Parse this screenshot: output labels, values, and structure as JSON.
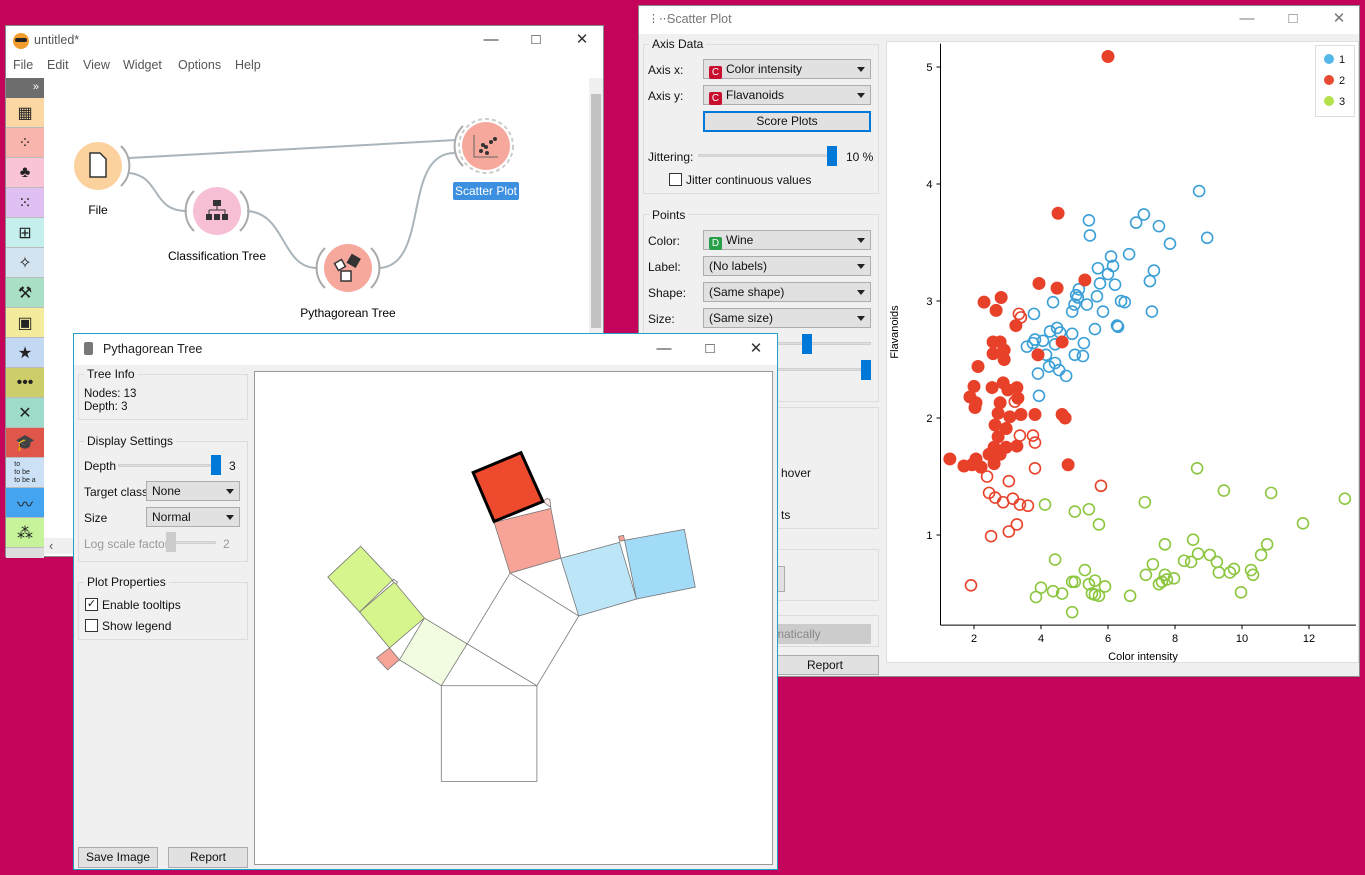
{
  "canvas_window": {
    "title": "untitled*",
    "menu": [
      "File",
      "Edit",
      "View",
      "Widget",
      "Options",
      "Help"
    ],
    "toolbar_collapse": "»",
    "toolbar_categories": [
      {
        "icon": "data-table-icon",
        "color": "#fbd7a3"
      },
      {
        "icon": "scatter-icon",
        "color": "#f8b4ad"
      },
      {
        "icon": "tree-icon",
        "color": "#f9c4d6"
      },
      {
        "icon": "cluster-icon",
        "color": "#e0c0f3"
      },
      {
        "icon": "confusion-matrix-icon",
        "color": "#c5efec"
      },
      {
        "icon": "sparkle-icon",
        "color": "#d3e3ef"
      },
      {
        "icon": "worker-icon",
        "color": "#a8dfc5"
      },
      {
        "icon": "image-icon",
        "color": "#f5eb9c"
      },
      {
        "icon": "star-icon",
        "color": "#c3d8f2"
      },
      {
        "icon": "sequence-icon",
        "color": "#cdcd6a"
      },
      {
        "icon": "network-icon",
        "color": "#9edbca"
      },
      {
        "icon": "graduation-cap-icon",
        "color": "#e1564b"
      },
      {
        "icon": "text-icon",
        "color": "#cce1f6",
        "label": "to\nto be\nto be a"
      },
      {
        "icon": "line-chart-icon",
        "color": "#44a4ef"
      },
      {
        "icon": "dots-icon",
        "color": "#c7f49a"
      }
    ],
    "nodes": [
      {
        "label": "File",
        "color": "#fbd29e"
      },
      {
        "label": "Classification Tree",
        "color": "#f7bfd6"
      },
      {
        "label": "Pythagorean Tree",
        "color": "#f6a89c"
      },
      {
        "label": "Scatter Plot",
        "color": "#f6a89c",
        "selected": true
      }
    ]
  },
  "pythagorean_window": {
    "title": "Pythagorean Tree",
    "tree_info": {
      "title": "Tree Info",
      "nodes": "Nodes: 13",
      "depth": "Depth: 3"
    },
    "display_settings": {
      "title": "Display Settings",
      "depth_label": "Depth",
      "depth_value": "3",
      "depth_level": 1.0,
      "target_class_label": "Target class",
      "target_class": "None",
      "size_label": "Size",
      "size": "Normal",
      "log_scale_label": "Log scale factor",
      "log_scale_value": "2"
    },
    "plot_properties": {
      "title": "Plot Properties",
      "enable_tooltips": {
        "label": "Enable tooltips",
        "checked": true
      },
      "show_legend": {
        "label": "Show legend",
        "checked": false
      }
    },
    "save_image": "Save Image",
    "report": "Report",
    "colors": {
      "class1_light": "#bde5f8",
      "class1": "#a2dbf8",
      "class2_light": "#f8a398",
      "class2": "#ee4a2e",
      "class3_light": "#f1fce0",
      "class3": "#d6f58c"
    }
  },
  "scatter_window": {
    "title": "Scatter Plot",
    "axis_data": {
      "title": "Axis Data",
      "axis_x_label": "Axis x:",
      "axis_x_badge": "C",
      "axis_x": "Color intensity",
      "axis_y_label": "Axis y:",
      "axis_y_badge": "C",
      "axis_y": "Flavanoids",
      "score_plots": "Score Plots",
      "jittering_label": "Jittering:",
      "jittering_value": "10 %",
      "jittering_level": 1.0,
      "jitter_continuous": {
        "label": "Jitter continuous values",
        "checked": false
      }
    },
    "points": {
      "title": "Points",
      "color_label": "Color:",
      "color_badge": "D",
      "color": "Wine",
      "label_label": "Label:",
      "label": "(No labels)",
      "shape_label": "Shape:",
      "shape": "(Same shape)",
      "size_label": "Size:",
      "size": "(Same size)"
    },
    "partial_texts": {
      "hover": "hover",
      "ts": "ts",
      "automatic": "matically"
    },
    "report": "Report"
  },
  "chart_data": {
    "type": "scatter",
    "xlabel": "Color intensity",
    "ylabel": "Flavanoids",
    "xlim": [
      1.0,
      13.4
    ],
    "ylim": [
      0.23,
      5.2
    ],
    "xticks": [
      2,
      4,
      6,
      8,
      10,
      12
    ],
    "yticks": [
      1,
      2,
      3,
      4,
      5
    ],
    "grid": false,
    "legend_position": "top-right",
    "series": [
      {
        "name": "1",
        "color": "#3a9fd6",
        "legend_color": "#55b8e8",
        "points": [
          [
            8.72,
            3.94
          ],
          [
            7.07,
            3.74
          ],
          [
            5.43,
            3.69
          ],
          [
            6.84,
            3.67
          ],
          [
            7.52,
            3.64
          ],
          [
            5.46,
            3.56
          ],
          [
            7.85,
            3.49
          ],
          [
            8.96,
            3.54
          ],
          [
            6.09,
            3.38
          ],
          [
            6.63,
            3.4
          ],
          [
            5.7,
            3.28
          ],
          [
            6.15,
            3.3
          ],
          [
            7.37,
            3.26
          ],
          [
            7.25,
            3.17
          ],
          [
            6.0,
            3.23
          ],
          [
            5.76,
            3.15
          ],
          [
            6.21,
            3.14
          ],
          [
            5.13,
            3.1
          ],
          [
            5.67,
            3.04
          ],
          [
            6.39,
            3.0
          ],
          [
            5.1,
            3.03
          ],
          [
            5.37,
            2.97
          ],
          [
            4.36,
            2.99
          ],
          [
            3.79,
            2.89
          ],
          [
            4.93,
            2.91
          ],
          [
            5.85,
            2.91
          ],
          [
            6.27,
            2.79
          ],
          [
            7.31,
            2.91
          ],
          [
            5.61,
            2.76
          ],
          [
            4.48,
            2.77
          ],
          [
            4.27,
            2.74
          ],
          [
            4.06,
            2.66
          ],
          [
            3.76,
            2.64
          ],
          [
            3.58,
            2.61
          ],
          [
            3.82,
            2.67
          ],
          [
            4.42,
            2.63
          ],
          [
            4.93,
            2.72
          ],
          [
            5.28,
            2.64
          ],
          [
            4.15,
            2.54
          ],
          [
            4.42,
            2.47
          ],
          [
            5.01,
            2.54
          ],
          [
            5.25,
            2.53
          ],
          [
            3.91,
            2.38
          ],
          [
            4.24,
            2.44
          ],
          [
            4.54,
            2.41
          ],
          [
            4.75,
            2.36
          ],
          [
            3.94,
            2.19
          ],
          [
            6.3,
            2.78
          ],
          [
            5.0,
            2.97
          ],
          [
            5.05,
            3.05
          ],
          [
            6.5,
            2.99
          ],
          [
            4.57,
            2.73
          ]
        ]
      },
      {
        "name": "2",
        "color": "#e8412a",
        "legend_color": "#e84b30",
        "points": [
          [
            3.34,
            2.89
          ],
          [
            3.4,
            2.86
          ],
          [
            3.22,
            2.14
          ],
          [
            3.37,
            1.85
          ],
          [
            3.76,
            1.85
          ],
          [
            3.82,
            1.79
          ],
          [
            3.82,
            1.57
          ],
          [
            2.39,
            1.5
          ],
          [
            3.04,
            1.46
          ],
          [
            5.79,
            1.42
          ],
          [
            2.45,
            1.36
          ],
          [
            2.63,
            1.32
          ],
          [
            2.87,
            1.28
          ],
          [
            3.16,
            1.31
          ],
          [
            3.37,
            1.26
          ],
          [
            3.61,
            1.25
          ],
          [
            3.28,
            1.09
          ],
          [
            3.04,
            1.03
          ],
          [
            2.51,
            0.99
          ],
          [
            1.91,
            0.57
          ]
        ],
        "selected_points": [
          [
            6.0,
            5.09
          ],
          [
            4.51,
            3.75
          ],
          [
            3.94,
            3.15
          ],
          [
            4.48,
            3.11
          ],
          [
            5.31,
            3.18
          ],
          [
            2.3,
            2.99
          ],
          [
            2.81,
            3.03
          ],
          [
            2.66,
            2.92
          ],
          [
            3.25,
            2.79
          ],
          [
            4.63,
            2.65
          ],
          [
            3.91,
            2.54
          ],
          [
            2.57,
            2.65
          ],
          [
            2.78,
            2.65
          ],
          [
            2.9,
            2.58
          ],
          [
            2.57,
            2.55
          ],
          [
            2.9,
            2.5
          ],
          [
            2.12,
            2.44
          ],
          [
            2.0,
            2.27
          ],
          [
            2.54,
            2.26
          ],
          [
            2.87,
            2.3
          ],
          [
            3.01,
            2.24
          ],
          [
            3.28,
            2.26
          ],
          [
            3.31,
            2.17
          ],
          [
            1.88,
            2.18
          ],
          [
            2.06,
            2.13
          ],
          [
            2.03,
            2.09
          ],
          [
            2.78,
            2.13
          ],
          [
            2.72,
            2.04
          ],
          [
            3.07,
            2.01
          ],
          [
            3.4,
            2.03
          ],
          [
            3.82,
            2.03
          ],
          [
            4.63,
            2.03
          ],
          [
            4.72,
            2.0
          ],
          [
            2.63,
            1.94
          ],
          [
            2.96,
            1.91
          ],
          [
            2.72,
            1.84
          ],
          [
            3.28,
            1.76
          ],
          [
            2.96,
            1.75
          ],
          [
            2.6,
            1.75
          ],
          [
            2.78,
            1.69
          ],
          [
            2.45,
            1.69
          ],
          [
            2.06,
            1.65
          ],
          [
            1.94,
            1.6
          ],
          [
            1.7,
            1.59
          ],
          [
            2.21,
            1.58
          ],
          [
            2.6,
            1.61
          ],
          [
            1.28,
            1.65
          ],
          [
            4.81,
            1.6
          ]
        ]
      },
      {
        "name": "3",
        "color": "#8cc63f",
        "legend_color": "#b4e04a",
        "points": [
          [
            8.66,
            1.57
          ],
          [
            9.46,
            1.38
          ],
          [
            10.87,
            1.36
          ],
          [
            13.07,
            1.31
          ],
          [
            7.1,
            1.28
          ],
          [
            4.12,
            1.26
          ],
          [
            5.01,
            1.2
          ],
          [
            5.43,
            1.22
          ],
          [
            5.73,
            1.09
          ],
          [
            11.82,
            1.1
          ],
          [
            7.7,
            0.92
          ],
          [
            8.54,
            0.96
          ],
          [
            10.75,
            0.92
          ],
          [
            10.57,
            0.83
          ],
          [
            8.69,
            0.84
          ],
          [
            9.04,
            0.83
          ],
          [
            8.27,
            0.78
          ],
          [
            8.48,
            0.77
          ],
          [
            9.25,
            0.77
          ],
          [
            4.42,
            0.79
          ],
          [
            7.34,
            0.75
          ],
          [
            9.76,
            0.71
          ],
          [
            9.64,
            0.68
          ],
          [
            9.31,
            0.68
          ],
          [
            10.27,
            0.7
          ],
          [
            10.33,
            0.66
          ],
          [
            5.31,
            0.7
          ],
          [
            7.13,
            0.66
          ],
          [
            7.7,
            0.66
          ],
          [
            7.97,
            0.63
          ],
          [
            7.76,
            0.62
          ],
          [
            7.61,
            0.6
          ],
          [
            7.52,
            0.58
          ],
          [
            4.93,
            0.6
          ],
          [
            5.01,
            0.6
          ],
          [
            5.61,
            0.61
          ],
          [
            5.43,
            0.58
          ],
          [
            5.91,
            0.56
          ],
          [
            4.0,
            0.55
          ],
          [
            4.36,
            0.52
          ],
          [
            4.63,
            0.5
          ],
          [
            3.85,
            0.47
          ],
          [
            5.52,
            0.5
          ],
          [
            5.61,
            0.49
          ],
          [
            5.73,
            0.48
          ],
          [
            6.66,
            0.48
          ],
          [
            9.97,
            0.51
          ],
          [
            4.93,
            0.34
          ]
        ]
      }
    ]
  }
}
